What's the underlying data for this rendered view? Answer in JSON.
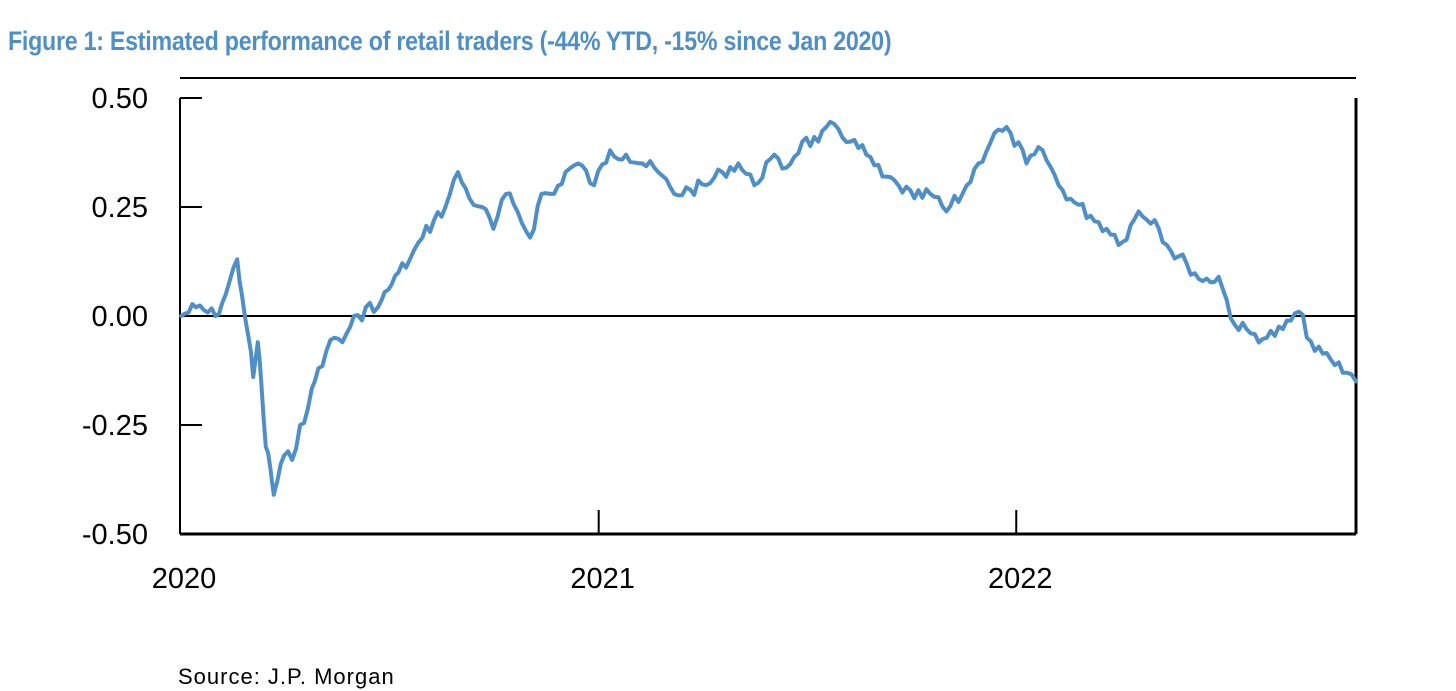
{
  "title": "Figure 1: Estimated performance of retail traders (-44% YTD, -15% since Jan 2020)",
  "source": "Source:  J.P. Morgan",
  "colors": {
    "series": "#4f8fc8",
    "axis": "#000000",
    "title": "#4f8fc8"
  },
  "chart_data": {
    "type": "line",
    "title": "Figure 1: Estimated performance of retail traders (-44% YTD, -15% since Jan 2020)",
    "xlabel": "",
    "ylabel": "",
    "xlim": [
      "2020-01-01",
      "2022-10-25"
    ],
    "ylim": [
      -0.5,
      0.5
    ],
    "y_ticks": [
      "0.50",
      "0.25",
      "0.00",
      "-0.25",
      "-0.50"
    ],
    "x_ticks": [
      "2020",
      "2021",
      "2022"
    ],
    "grid": false,
    "legend": "none",
    "series": [
      {
        "x": [
          "2020-01-02",
          "2020-01-15",
          "2020-02-01",
          "2020-02-10",
          "2020-02-20",
          "2020-02-24",
          "2020-03-01",
          "2020-03-05",
          "2020-03-09",
          "2020-03-12",
          "2020-03-16",
          "2020-03-20",
          "2020-03-23",
          "2020-03-26",
          "2020-04-01",
          "2020-04-08",
          "2020-04-15",
          "2020-04-22",
          "2020-05-01",
          "2020-05-08",
          "2020-05-15",
          "2020-05-22",
          "2020-06-01",
          "2020-06-08",
          "2020-06-15",
          "2020-06-22",
          "2020-07-01",
          "2020-07-10",
          "2020-07-20",
          "2020-07-31",
          "2020-08-10",
          "2020-08-20",
          "2020-08-31",
          "2020-09-10",
          "2020-09-21",
          "2020-10-01",
          "2020-10-12",
          "2020-10-22",
          "2020-11-02",
          "2020-11-12",
          "2020-11-23",
          "2020-12-03",
          "2020-12-14",
          "2020-12-28",
          "2021-01-11",
          "2021-01-25",
          "2021-02-08",
          "2021-02-22",
          "2021-03-08",
          "2021-03-22",
          "2021-04-05",
          "2021-04-19",
          "2021-05-03",
          "2021-05-17",
          "2021-05-31",
          "2021-06-14",
          "2021-06-28",
          "2021-07-12",
          "2021-07-26",
          "2021-08-09",
          "2021-08-23",
          "2021-09-06",
          "2021-09-20",
          "2021-10-04",
          "2021-10-18",
          "2021-11-01",
          "2021-11-15",
          "2021-11-29",
          "2021-12-13",
          "2021-12-27",
          "2022-01-10",
          "2022-01-24",
          "2022-02-07",
          "2022-02-21",
          "2022-03-07",
          "2022-03-21",
          "2022-04-04",
          "2022-04-18",
          "2022-05-02",
          "2022-05-16",
          "2022-05-30",
          "2022-06-13",
          "2022-06-27",
          "2022-07-11",
          "2022-07-25",
          "2022-08-08",
          "2022-08-22",
          "2022-09-05",
          "2022-09-19",
          "2022-10-03",
          "2022-10-17",
          "2022-10-25"
        ],
        "values": [
          0.0,
          0.02,
          0.0,
          0.05,
          0.13,
          0.05,
          -0.05,
          -0.14,
          -0.06,
          -0.15,
          -0.3,
          -0.35,
          -0.41,
          -0.38,
          -0.32,
          -0.33,
          -0.25,
          -0.21,
          -0.12,
          -0.08,
          -0.05,
          -0.06,
          0.0,
          -0.01,
          0.03,
          0.02,
          0.06,
          0.1,
          0.13,
          0.18,
          0.22,
          0.25,
          0.33,
          0.27,
          0.25,
          0.2,
          0.28,
          0.24,
          0.18,
          0.28,
          0.28,
          0.33,
          0.35,
          0.3,
          0.38,
          0.37,
          0.35,
          0.33,
          0.28,
          0.29,
          0.3,
          0.33,
          0.35,
          0.3,
          0.36,
          0.34,
          0.4,
          0.4,
          0.44,
          0.4,
          0.37,
          0.32,
          0.3,
          0.27,
          0.28,
          0.24,
          0.28,
          0.35,
          0.42,
          0.42,
          0.35,
          0.38,
          0.3,
          0.26,
          0.23,
          0.2,
          0.17,
          0.24,
          0.22,
          0.15,
          0.12,
          0.08,
          0.09,
          -0.02,
          -0.04,
          -0.05,
          -0.03,
          0.01,
          -0.08,
          -0.1,
          -0.13,
          -0.15
        ]
      }
    ]
  }
}
